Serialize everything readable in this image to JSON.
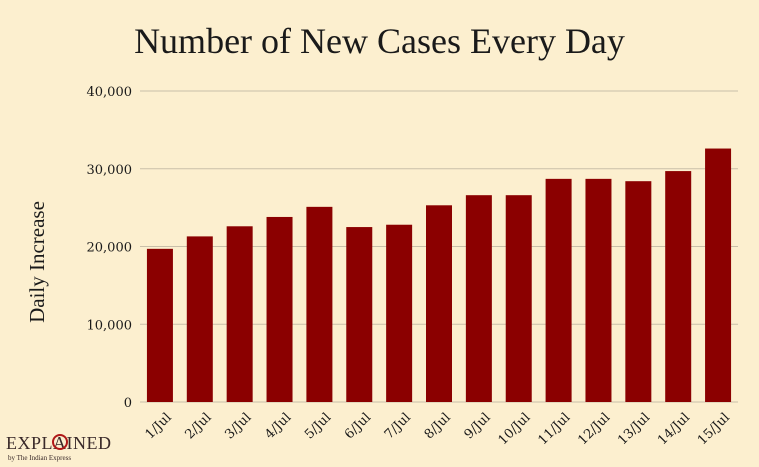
{
  "chart_data": {
    "type": "bar",
    "title": "Number of New Cases Every Day",
    "xlabel": "",
    "ylabel": "Daily Increase",
    "categories": [
      "1/Jul",
      "2/Jul",
      "3/Jul",
      "4/Jul",
      "5/Jul",
      "6/Jul",
      "7/Jul",
      "8/Jul",
      "9/Jul",
      "10/Jul",
      "11/Jul",
      "12/Jul",
      "13/Jul",
      "14/Jul",
      "15/Jul"
    ],
    "values": [
      19700,
      21300,
      22600,
      23800,
      25100,
      22500,
      22800,
      25300,
      26600,
      26600,
      28700,
      28700,
      28400,
      29700,
      32600
    ],
    "ylim": [
      0,
      40000
    ],
    "yticks": [
      0,
      10000,
      20000,
      30000,
      40000
    ],
    "ytick_labels": [
      "0",
      "10,000",
      "20,000",
      "30,000",
      "40,000"
    ],
    "grid": true,
    "legend": "none",
    "bar_color": "#8b0000",
    "grid_color": "#c9bfa9",
    "background": "#fcefcf"
  },
  "logo": {
    "word": "EXPLAINED",
    "tagline": "by The Indian Express"
  }
}
